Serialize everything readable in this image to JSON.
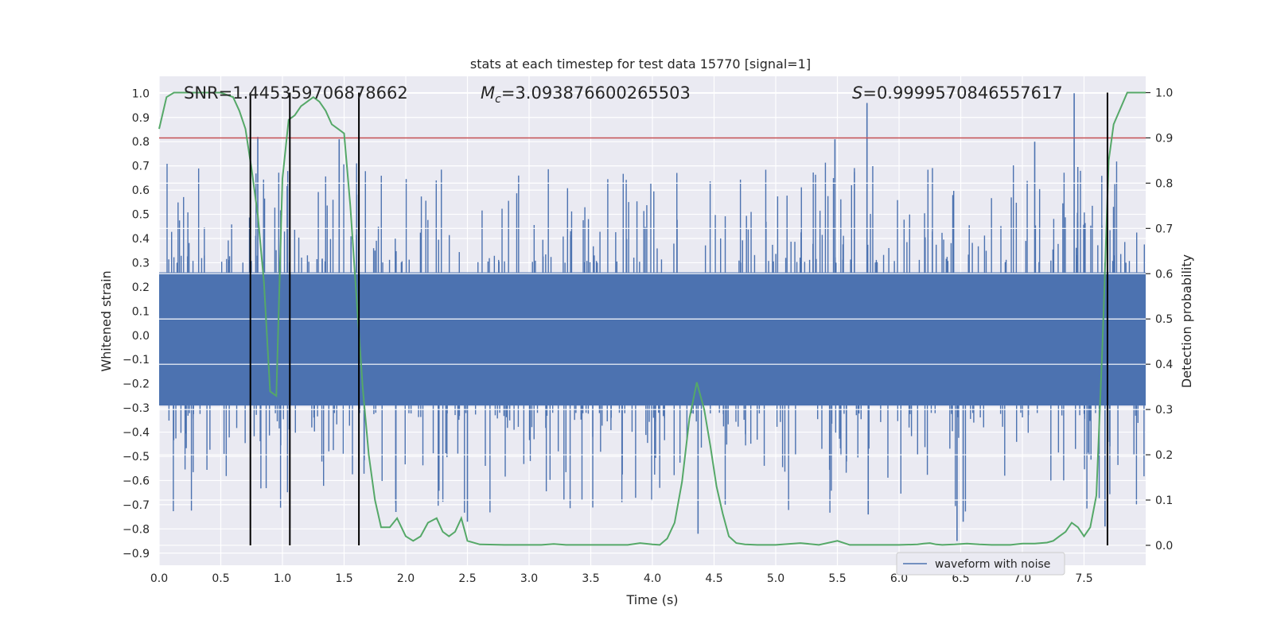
{
  "chart_data": {
    "type": "line",
    "title": "stats at each timestep for test data 15770 [signal=1]",
    "xlabel": "Time (s)",
    "ylabel": "Whitened strain",
    "y2label": "Detection probability",
    "xlim": [
      0.0,
      8.0
    ],
    "ylim": [
      -0.95,
      1.07
    ],
    "y2lim": [
      -0.044,
      1.036
    ],
    "xticks": [
      "0.0",
      "0.5",
      "1.0",
      "1.5",
      "2.0",
      "2.5",
      "3.0",
      "3.5",
      "4.0",
      "4.5",
      "5.0",
      "5.5",
      "6.0",
      "6.5",
      "7.0",
      "7.5"
    ],
    "yticks": [
      "1.0",
      "0.9",
      "0.8",
      "0.7",
      "0.6",
      "0.5",
      "0.4",
      "0.3",
      "0.2",
      "0.1",
      "0.0",
      "−0.1",
      "−0.2",
      "−0.3",
      "−0.4",
      "−0.5",
      "−0.6",
      "−0.7",
      "−0.8",
      "−0.9"
    ],
    "y2ticks": [
      "1.0",
      "0.9",
      "0.8",
      "0.7",
      "0.6",
      "0.5",
      "0.4",
      "0.3",
      "0.2",
      "0.1",
      "0.0"
    ],
    "annotations": {
      "snr": "SNR=1.445359706878662",
      "mc_symbol": "M",
      "mc_subscript": "c",
      "mc_value": "=3.093876600265503",
      "s_symbol": "S",
      "s_value": "=0.9999570846557617"
    },
    "legend": {
      "label": "waveform with noise",
      "placement": "lower-right"
    },
    "threshold": {
      "value": 0.9,
      "axis": "right",
      "color": "#c44e52"
    },
    "vertical_markers": [
      0.74,
      1.06,
      1.62,
      7.69
    ],
    "series": [
      {
        "name": "waveform with noise",
        "color": "#4c72b0",
        "axis": "left",
        "x_range": [
          0.0,
          8.0
        ],
        "band_min": -0.29,
        "band_max": 0.26,
        "spike_count": 520,
        "peak_spikes": [
          {
            "x": 0.8,
            "y": 0.82
          },
          {
            "x": 1.46,
            "y": 0.81
          },
          {
            "x": 1.62,
            "y": 0.8
          },
          {
            "x": 5.74,
            "y": 0.96
          },
          {
            "x": 7.42,
            "y": 1.0
          },
          {
            "x": 7.1,
            "y": 0.8
          },
          {
            "x": 5.48,
            "y": 0.81
          },
          {
            "x": 6.47,
            "y": -0.85
          },
          {
            "x": 4.37,
            "y": -0.82
          },
          {
            "x": 7.67,
            "y": -0.79
          },
          {
            "x": 2.5,
            "y": -0.77
          },
          {
            "x": 5.75,
            "y": -0.74
          },
          {
            "x": 6.52,
            "y": -0.77
          },
          {
            "x": 1.92,
            "y": -0.73
          }
        ]
      },
      {
        "name": "detection probability",
        "color": "#55a868",
        "axis": "right",
        "x": [
          0.0,
          0.06,
          0.12,
          0.2,
          0.3,
          0.4,
          0.5,
          0.6,
          0.65,
          0.7,
          0.75,
          0.8,
          0.85,
          0.9,
          0.95,
          1.0,
          1.05,
          1.1,
          1.15,
          1.2,
          1.25,
          1.3,
          1.35,
          1.4,
          1.45,
          1.5,
          1.55,
          1.6,
          1.65,
          1.7,
          1.75,
          1.8,
          1.87,
          1.93,
          2.0,
          2.06,
          2.12,
          2.18,
          2.25,
          2.3,
          2.35,
          2.4,
          2.45,
          2.5,
          2.6,
          2.8,
          2.95,
          3.1,
          3.2,
          3.3,
          3.4,
          3.5,
          3.6,
          3.7,
          3.8,
          3.9,
          4.0,
          4.06,
          4.12,
          4.18,
          4.24,
          4.3,
          4.36,
          4.42,
          4.47,
          4.52,
          4.57,
          4.62,
          4.68,
          4.75,
          4.85,
          5.0,
          5.2,
          5.35,
          5.5,
          5.6,
          5.8,
          6.0,
          6.15,
          6.2,
          6.25,
          6.3,
          6.35,
          6.45,
          6.55,
          6.65,
          6.75,
          6.9,
          7.0,
          7.1,
          7.2,
          7.25,
          7.3,
          7.35,
          7.4,
          7.45,
          7.5,
          7.55,
          7.6,
          7.65,
          7.7,
          7.74,
          7.85,
          8.0
        ],
        "values": [
          0.92,
          0.99,
          1.0,
          1.0,
          1.0,
          1.0,
          1.0,
          0.99,
          0.96,
          0.92,
          0.83,
          0.73,
          0.58,
          0.34,
          0.33,
          0.81,
          0.94,
          0.95,
          0.97,
          0.98,
          0.99,
          0.98,
          0.96,
          0.93,
          0.92,
          0.91,
          0.75,
          0.55,
          0.35,
          0.2,
          0.1,
          0.04,
          0.04,
          0.06,
          0.02,
          0.01,
          0.02,
          0.05,
          0.06,
          0.03,
          0.02,
          0.03,
          0.06,
          0.01,
          0.002,
          0.001,
          0.001,
          0.001,
          0.003,
          0.001,
          0.001,
          0.001,
          0.001,
          0.001,
          0.001,
          0.005,
          0.002,
          0.001,
          0.015,
          0.05,
          0.14,
          0.28,
          0.36,
          0.3,
          0.22,
          0.13,
          0.07,
          0.02,
          0.005,
          0.002,
          0.001,
          0.001,
          0.005,
          0.001,
          0.01,
          0.001,
          0.001,
          0.001,
          0.002,
          0.004,
          0.005,
          0.002,
          0.001,
          0.002,
          0.004,
          0.002,
          0.001,
          0.001,
          0.004,
          0.004,
          0.006,
          0.01,
          0.02,
          0.03,
          0.05,
          0.04,
          0.02,
          0.04,
          0.11,
          0.45,
          0.85,
          0.93,
          1.0,
          1.0
        ]
      }
    ]
  }
}
